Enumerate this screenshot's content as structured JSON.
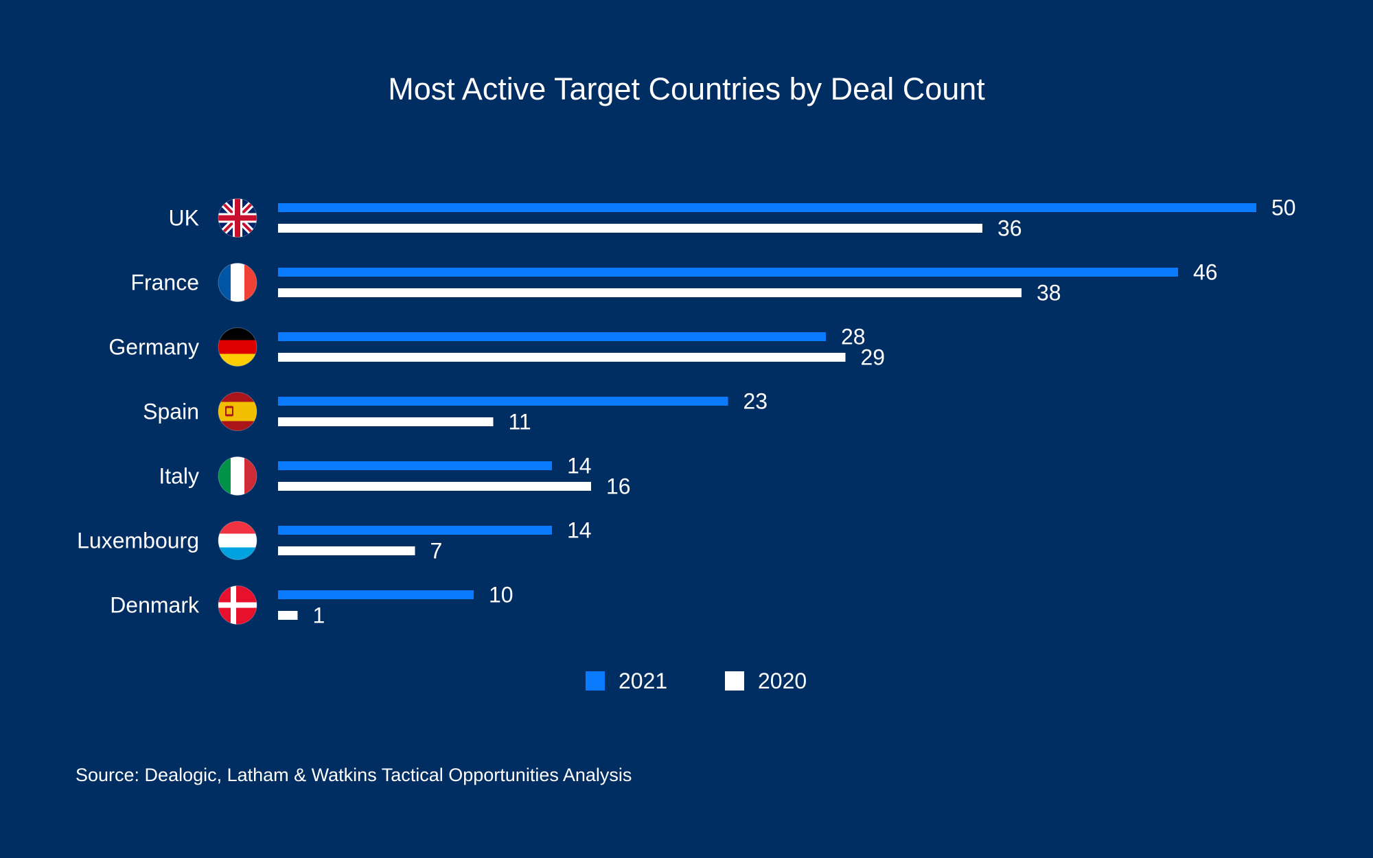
{
  "chart_data": {
    "type": "bar",
    "orientation": "horizontal",
    "title": "Most Active Target Countries by Deal Count",
    "categories": [
      "UK",
      "France",
      "Germany",
      "Spain",
      "Italy",
      "Luxembourg",
      "Denmark"
    ],
    "flag_icons": [
      "uk-flag-icon",
      "france-flag-icon",
      "germany-flag-icon",
      "spain-flag-icon",
      "italy-flag-icon",
      "luxembourg-flag-icon",
      "denmark-flag-icon"
    ],
    "series": [
      {
        "name": "2021",
        "color": "#0A7BFF",
        "values": [
          50,
          46,
          28,
          23,
          14,
          14,
          10
        ]
      },
      {
        "name": "2020",
        "color": "#FFFFFF",
        "values": [
          36,
          38,
          29,
          11,
          16,
          7,
          1
        ]
      }
    ],
    "xlim": [
      0,
      50
    ],
    "grid": false,
    "legend_position": "bottom-center",
    "source": "Source: Dealogic, Latham & Watkins Tactical Opportunities Analysis"
  },
  "colors": {
    "background": "#002D62",
    "text": "#FFFFFF"
  }
}
